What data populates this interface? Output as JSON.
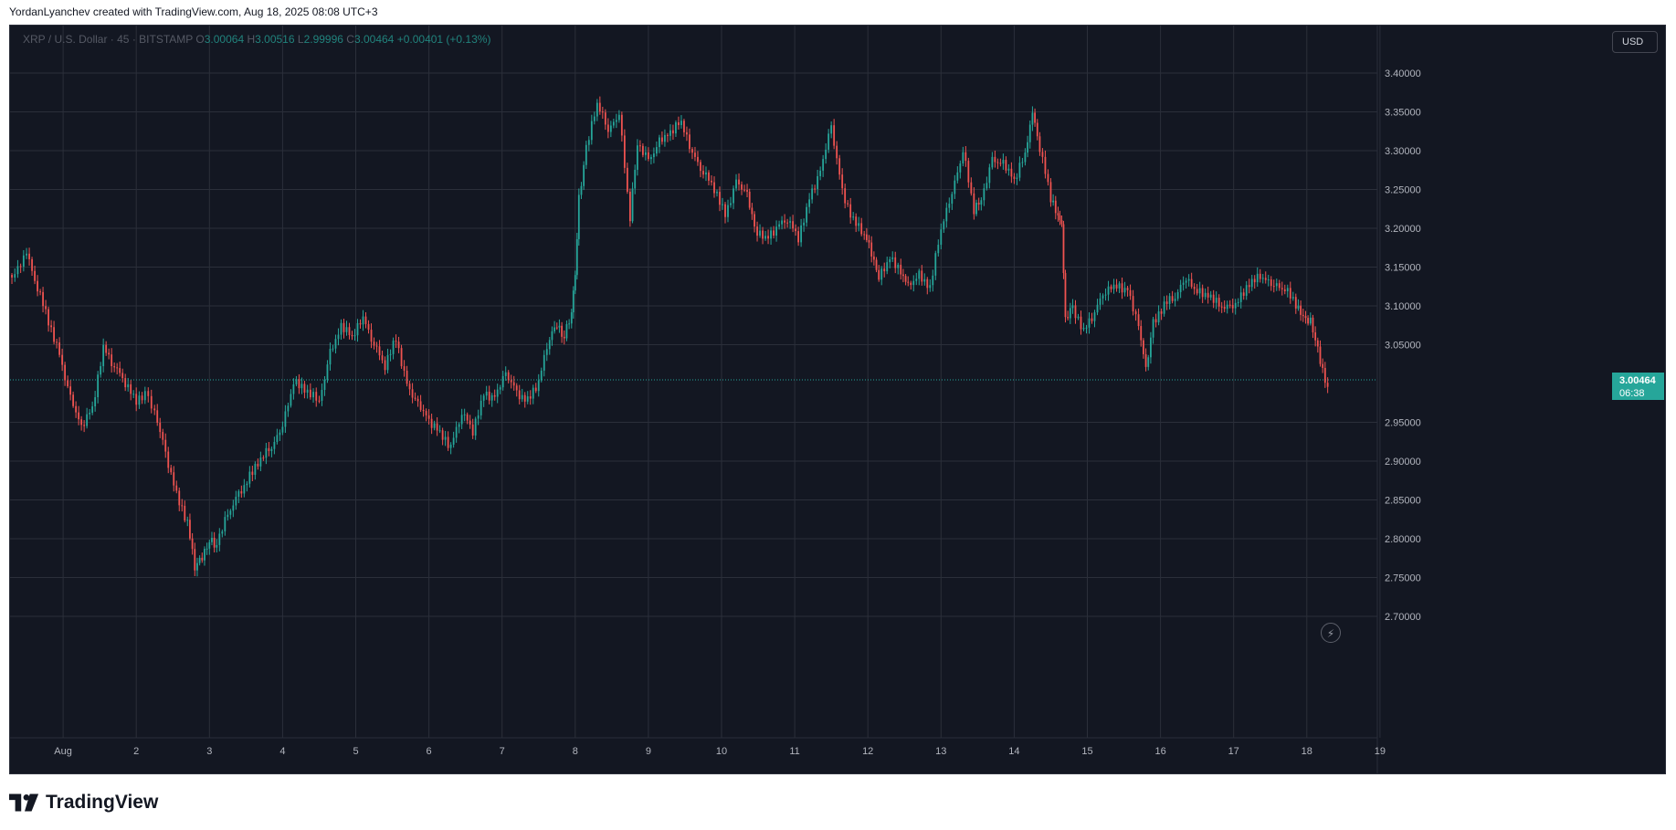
{
  "header": {
    "text": "YordanLyanchev created with TradingView.com, Aug 18, 2025 08:08 UTC+3"
  },
  "legend": {
    "symbol": "XRP / U.S. Dollar · 45 · BITSTAMP",
    "open_label": "O",
    "open": "3.00064",
    "high_label": "H",
    "high": "3.00516",
    "low_label": "L",
    "low": "2.99996",
    "close_label": "C",
    "close": "3.00464",
    "change": "+0.00401 (+0.13%)"
  },
  "currency_button": "USD",
  "price_tag": {
    "price": "3.00464",
    "countdown": "06:38"
  },
  "brand": {
    "name": "TradingView"
  },
  "colors": {
    "background": "#131722",
    "grid": "#2b2f3a",
    "up": "#26a69a",
    "down": "#ef5350",
    "axis_text": "#b2b5be"
  },
  "icons": {
    "replay": "lightning-bolt-icon",
    "logo": "tradingview-logo-icon"
  },
  "chart_data": {
    "type": "candlestick",
    "symbol": "XRP / U.S. Dollar",
    "interval": "45",
    "exchange": "BITSTAMP",
    "x_ticks": [
      "Aug",
      "2",
      "3",
      "4",
      "5",
      "6",
      "7",
      "8",
      "9",
      "10",
      "11",
      "12",
      "13",
      "14",
      "15",
      "16",
      "17",
      "18",
      "19"
    ],
    "y_ticks": [
      "3.40000",
      "3.35000",
      "3.30000",
      "3.25000",
      "3.20000",
      "3.15000",
      "3.10000",
      "3.05000",
      "2.95000",
      "2.90000",
      "2.85000",
      "2.80000",
      "2.75000",
      "2.70000"
    ],
    "ylim": [
      2.67,
      3.44
    ],
    "xlim": [
      0.27,
      19.0
    ],
    "last_price": 3.00464,
    "grid": true,
    "series": [
      {
        "name": "XRP / U.S. Dollar",
        "x": [
          0.3,
          0.5,
          0.65,
          0.8,
          0.95,
          1.1,
          1.25,
          1.4,
          1.55,
          1.7,
          1.85,
          2.0,
          2.12,
          2.25,
          2.4,
          2.55,
          2.7,
          2.8,
          2.9,
          3.0,
          3.1,
          3.25,
          3.4,
          3.55,
          3.7,
          3.85,
          4.0,
          4.15,
          4.3,
          4.5,
          4.65,
          4.8,
          4.95,
          5.1,
          5.25,
          5.4,
          5.55,
          5.7,
          5.85,
          6.0,
          6.15,
          6.3,
          6.45,
          6.6,
          6.75,
          6.9,
          7.05,
          7.2,
          7.35,
          7.5,
          7.65,
          7.75,
          7.85,
          7.95,
          8.0,
          8.05,
          8.15,
          8.3,
          8.45,
          8.6,
          8.75,
          8.85,
          9.0,
          9.15,
          9.3,
          9.45,
          9.6,
          9.75,
          9.9,
          10.05,
          10.2,
          10.35,
          10.45,
          10.6,
          10.75,
          10.9,
          11.05,
          11.2,
          11.35,
          11.5,
          11.65,
          11.8,
          11.95,
          12.05,
          12.15,
          12.3,
          12.45,
          12.55,
          12.7,
          12.85,
          13.0,
          13.15,
          13.3,
          13.45,
          13.55,
          13.7,
          13.85,
          14.0,
          14.15,
          14.25,
          14.35,
          14.5,
          14.6,
          14.65,
          14.7,
          14.8,
          14.95,
          15.1,
          15.25,
          15.4,
          15.55,
          15.7,
          15.8,
          15.9,
          16.05,
          16.2,
          16.35,
          16.5,
          16.65,
          16.8,
          16.95,
          17.1,
          17.25,
          17.4,
          17.55,
          17.7,
          17.85,
          17.95,
          18.05,
          18.15,
          18.25,
          18.32
        ],
        "close": [
          3.14,
          3.17,
          3.12,
          3.08,
          3.04,
          2.98,
          2.94,
          2.97,
          3.05,
          3.02,
          3.0,
          2.98,
          2.99,
          2.96,
          2.91,
          2.86,
          2.82,
          2.76,
          2.78,
          2.8,
          2.79,
          2.83,
          2.86,
          2.88,
          2.9,
          2.92,
          2.95,
          3.0,
          2.99,
          2.98,
          3.04,
          3.07,
          3.06,
          3.09,
          3.05,
          3.02,
          3.06,
          3.0,
          2.97,
          2.95,
          2.94,
          2.92,
          2.96,
          2.94,
          2.99,
          2.98,
          3.01,
          2.99,
          2.98,
          3.0,
          3.06,
          3.08,
          3.06,
          3.09,
          3.14,
          3.24,
          3.3,
          3.36,
          3.33,
          3.35,
          3.21,
          3.31,
          3.29,
          3.31,
          3.32,
          3.34,
          3.3,
          3.27,
          3.25,
          3.22,
          3.26,
          3.24,
          3.2,
          3.19,
          3.2,
          3.21,
          3.19,
          3.24,
          3.27,
          3.33,
          3.25,
          3.21,
          3.19,
          3.17,
          3.14,
          3.16,
          3.14,
          3.13,
          3.14,
          3.12,
          3.2,
          3.25,
          3.3,
          3.22,
          3.24,
          3.29,
          3.28,
          3.26,
          3.3,
          3.35,
          3.3,
          3.24,
          3.22,
          3.2,
          3.08,
          3.1,
          3.07,
          3.09,
          3.12,
          3.13,
          3.12,
          3.07,
          3.02,
          3.08,
          3.1,
          3.11,
          3.14,
          3.12,
          3.11,
          3.1,
          3.1,
          3.11,
          3.13,
          3.14,
          3.13,
          3.12,
          3.1,
          3.09,
          3.08,
          3.04,
          3.0,
          3.00464
        ]
      }
    ]
  }
}
